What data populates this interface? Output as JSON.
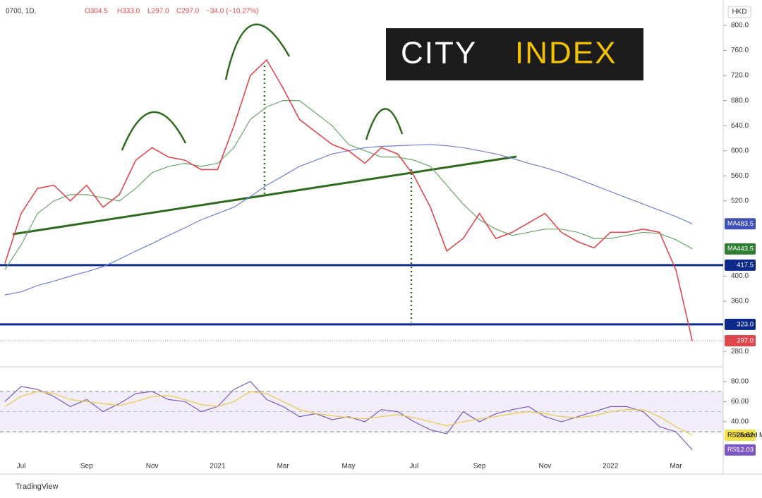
{
  "header": {
    "symbol": "0700, 1D,",
    "ohlc": [
      "O304.5",
      "H333.0",
      "L297.0",
      "C297.0",
      "−34.0 (−10.27%)"
    ]
  },
  "currency": "HKD",
  "logo": {
    "left": "CITY",
    "right": "INDEX"
  },
  "footer": "TradingView",
  "chart_data": [
    {
      "type": "line",
      "categories": [
        null,
        "Jul",
        null,
        null,
        null,
        "Sep",
        null,
        null,
        null,
        "Nov",
        null,
        null,
        null,
        "2021",
        null,
        null,
        null,
        "Mar",
        null,
        null,
        null,
        "May",
        null,
        null,
        null,
        "Jul",
        null,
        null,
        null,
        "Sep",
        null,
        null,
        null,
        "Nov",
        null,
        null,
        null,
        "2022",
        null,
        null,
        null,
        "Mar",
        null
      ],
      "series": [
        {
          "color": "#e0474c",
          "end_label": "297.0",
          "values": [
            420,
            500,
            540,
            545,
            520,
            545,
            510,
            530,
            585,
            605,
            590,
            585,
            570,
            570,
            640,
            720,
            745,
            700,
            650,
            630,
            610,
            600,
            580,
            605,
            595,
            560,
            510,
            440,
            460,
            500,
            460,
            470,
            485,
            500,
            470,
            455,
            445,
            470,
            470,
            475,
            470,
            410,
            297
          ]
        },
        {
          "name": "MA",
          "color": "#6aa66a",
          "badge": "#2e7d32",
          "values": [
            410,
            450,
            500,
            520,
            530,
            530,
            525,
            520,
            540,
            565,
            575,
            580,
            575,
            580,
            605,
            650,
            670,
            680,
            680,
            660,
            640,
            610,
            600,
            590,
            590,
            585,
            575,
            545,
            515,
            490,
            475,
            465,
            470,
            475,
            475,
            470,
            460,
            460,
            465,
            470,
            468,
            458,
            443.5
          ]
        },
        {
          "name": "MA",
          "color": "#6c7fd8",
          "badge": "#3f51b5",
          "values": [
            370,
            375,
            385,
            392,
            400,
            407,
            415,
            427,
            440,
            452,
            465,
            477,
            490,
            500,
            510,
            527,
            545,
            560,
            575,
            585,
            595,
            600,
            605,
            607,
            608,
            609,
            610,
            608,
            605,
            600,
            595,
            588,
            580,
            573,
            565,
            555,
            545,
            535,
            525,
            515,
            505,
            495,
            483.5
          ]
        }
      ],
      "levels": [
        {
          "value": 417.5,
          "label": "417.5"
        },
        {
          "value": 323,
          "label": "323.0"
        }
      ],
      "level_color": "#0d2a8a",
      "ylim": [
        261,
        840.5
      ],
      "yticks": [
        {
          "value": 800,
          "label": "800.0"
        },
        {
          "value": 760,
          "label": "760.0"
        },
        {
          "value": 720,
          "label": "720.0"
        },
        {
          "value": 680,
          "label": "680.0"
        },
        {
          "value": 640,
          "label": "640.0"
        },
        {
          "value": 600,
          "label": "600.0"
        },
        {
          "value": 560,
          "label": "560.0"
        },
        {
          "value": 520,
          "label": "520.0"
        },
        {
          "value": 400,
          "label": "400.0"
        },
        {
          "value": 360,
          "label": "360.0"
        },
        {
          "value": 280,
          "label": "280.0"
        }
      ]
    },
    {
      "type": "line",
      "series": [
        {
          "name": "RSI-based MA",
          "color": "#e8c94a",
          "badge": "#f5e14a",
          "values": [
            55,
            65,
            70,
            68,
            62,
            60,
            58,
            56,
            60,
            65,
            66,
            62,
            57,
            55,
            60,
            70,
            68,
            60,
            52,
            48,
            46,
            44,
            43,
            45,
            47,
            44,
            40,
            36,
            40,
            43,
            45,
            48,
            50,
            48,
            45,
            44,
            46,
            50,
            52,
            52,
            45,
            35,
            26.62
          ]
        },
        {
          "name": "RSI",
          "color": "#7e57c2",
          "badge": "#7e57c2",
          "values": [
            60,
            75,
            72,
            65,
            55,
            62,
            50,
            58,
            68,
            70,
            62,
            60,
            50,
            55,
            72,
            80,
            62,
            55,
            45,
            48,
            42,
            45,
            40,
            52,
            50,
            40,
            32,
            28,
            50,
            40,
            48,
            52,
            55,
            45,
            40,
            45,
            50,
            55,
            55,
            50,
            35,
            30,
            12.03
          ]
        }
      ],
      "band": [
        70,
        30
      ],
      "midline": 50,
      "ylim": [
        -3.5,
        91
      ],
      "yticks": [
        {
          "value": 80,
          "label": "80.00"
        },
        {
          "value": 60,
          "label": "60.00"
        },
        {
          "value": 40,
          "label": "40.00"
        }
      ]
    }
  ]
}
